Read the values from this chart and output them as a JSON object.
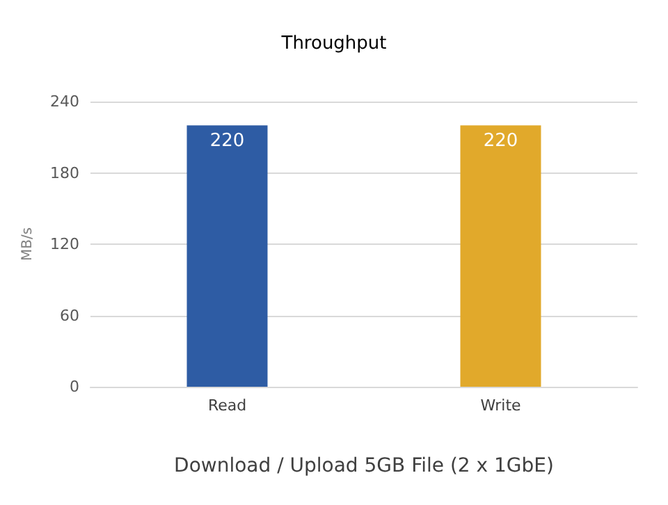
{
  "chart_data": {
    "type": "bar",
    "title": "Throughput",
    "ylabel": "MB/s",
    "xlabel": "Download / Upload 5GB File (2 x 1GbE)",
    "categories": [
      "Read",
      "Write"
    ],
    "values": [
      220,
      220
    ],
    "colors": [
      "#2e5ca4",
      "#e1a92b"
    ],
    "ylim": [
      0,
      240
    ],
    "yticks": [
      0,
      60,
      120,
      180,
      240
    ],
    "grid": "y",
    "data_labels": true
  }
}
